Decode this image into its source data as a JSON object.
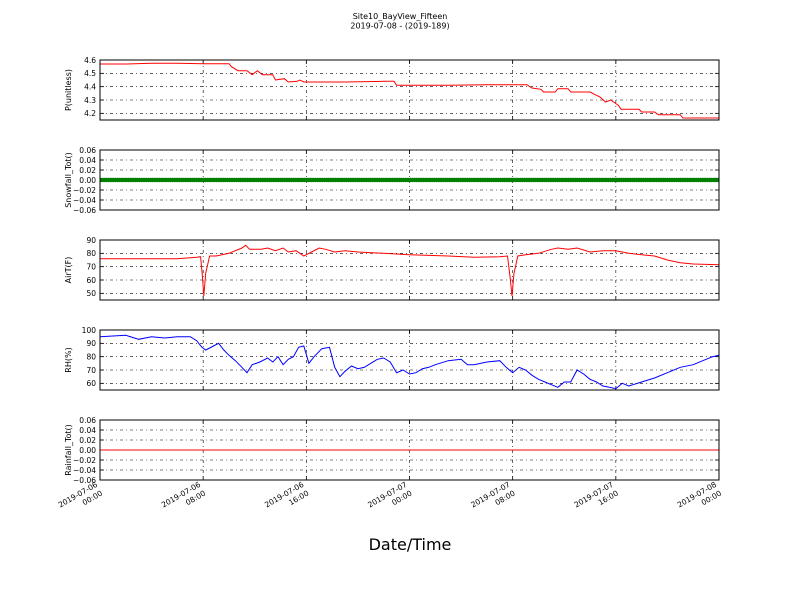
{
  "chart_data": {
    "type": "line",
    "title": "Site10_BayView_Fifteen",
    "subtitle": "2019-07-08 - (2019-189)",
    "xlabel": "Date/Time",
    "x_ticks": [
      {
        "line1": "2019-07-06",
        "line2": "00:00"
      },
      {
        "line1": "2019-07-06",
        "line2": "08:00"
      },
      {
        "line1": "2019-07-06",
        "line2": "16:00"
      },
      {
        "line1": "2019-07-07",
        "line2": "00:00"
      },
      {
        "line1": "2019-07-07",
        "line2": "08:00"
      },
      {
        "line1": "2019-07-07",
        "line2": "16:00"
      },
      {
        "line1": "2019-07-08",
        "line2": "00:00"
      }
    ],
    "x_range_hours": [
      0,
      48
    ],
    "grid": true,
    "panels": [
      {
        "ylabel": "P(unitless)",
        "ylim": [
          4.15,
          4.6
        ],
        "yticks": [
          "4.2",
          "4.3",
          "4.4",
          "4.5",
          "4.6"
        ],
        "ytick_values": [
          4.2,
          4.3,
          4.4,
          4.5,
          4.6
        ],
        "color": "#ff0000",
        "style": "line",
        "points": [
          [
            0,
            4.57
          ],
          [
            2,
            4.57
          ],
          [
            4,
            4.575
          ],
          [
            6,
            4.575
          ],
          [
            8,
            4.572
          ],
          [
            10,
            4.572
          ],
          [
            10.2,
            4.55
          ],
          [
            10.7,
            4.52
          ],
          [
            11.4,
            4.52
          ],
          [
            11.8,
            4.49
          ],
          [
            12.2,
            4.52
          ],
          [
            12.6,
            4.49
          ],
          [
            13.4,
            4.49
          ],
          [
            13.6,
            4.45
          ],
          [
            14.3,
            4.46
          ],
          [
            14.6,
            4.435
          ],
          [
            15.3,
            4.44
          ],
          [
            15.5,
            4.45
          ],
          [
            15.8,
            4.435
          ],
          [
            19,
            4.435
          ],
          [
            22,
            4.44
          ],
          [
            22.8,
            4.44
          ],
          [
            23,
            4.41
          ],
          [
            27,
            4.41
          ],
          [
            30,
            4.415
          ],
          [
            33.1,
            4.415
          ],
          [
            33.5,
            4.39
          ],
          [
            34.2,
            4.38
          ],
          [
            34.4,
            4.36
          ],
          [
            35.3,
            4.36
          ],
          [
            35.5,
            4.385
          ],
          [
            36.3,
            4.385
          ],
          [
            36.5,
            4.36
          ],
          [
            38,
            4.36
          ],
          [
            38.5,
            4.335
          ],
          [
            38.8,
            4.32
          ],
          [
            39.2,
            4.285
          ],
          [
            39.6,
            4.3
          ],
          [
            40.2,
            4.26
          ],
          [
            40.4,
            4.23
          ],
          [
            41.8,
            4.23
          ],
          [
            42,
            4.21
          ],
          [
            43,
            4.21
          ],
          [
            43.3,
            4.19
          ],
          [
            45,
            4.19
          ],
          [
            45.2,
            4.165
          ],
          [
            48,
            4.165
          ]
        ]
      },
      {
        "ylabel": "Snowfall_Tot()",
        "ylim": [
          -0.06,
          0.06
        ],
        "yticks": [
          "−0.06",
          "−0.04",
          "−0.02",
          "0.00",
          "0.02",
          "0.04",
          "0.06"
        ],
        "ytick_values": [
          -0.06,
          -0.04,
          -0.02,
          0.0,
          0.02,
          0.04,
          0.06
        ],
        "color": "#008000",
        "style": "markers",
        "points": [
          [
            0,
            0
          ],
          [
            48,
            0
          ]
        ]
      },
      {
        "ylabel": "AirT(F)",
        "ylim": [
          45,
          90
        ],
        "yticks": [
          "50",
          "60",
          "70",
          "80",
          "90"
        ],
        "ytick_values": [
          50,
          60,
          70,
          80,
          90
        ],
        "color": "#ff0000",
        "style": "line",
        "points": [
          [
            0,
            76
          ],
          [
            3,
            76
          ],
          [
            6,
            76
          ],
          [
            7.5,
            77
          ],
          [
            7.8,
            77.5
          ],
          [
            7.95,
            62
          ],
          [
            8.05,
            48
          ],
          [
            8.2,
            65
          ],
          [
            8.5,
            78
          ],
          [
            9,
            78
          ],
          [
            10,
            80
          ],
          [
            11,
            84
          ],
          [
            11.3,
            86
          ],
          [
            11.6,
            83
          ],
          [
            12.5,
            83
          ],
          [
            13,
            84
          ],
          [
            13.6,
            82
          ],
          [
            14.2,
            84
          ],
          [
            14.6,
            81
          ],
          [
            15.2,
            82
          ],
          [
            15.8,
            78
          ],
          [
            16.4,
            81
          ],
          [
            17,
            84
          ],
          [
            17.5,
            83
          ],
          [
            18.2,
            81
          ],
          [
            19,
            82
          ],
          [
            20,
            81
          ],
          [
            22,
            80
          ],
          [
            24,
            79
          ],
          [
            27,
            78
          ],
          [
            29,
            77
          ],
          [
            31,
            77.5
          ],
          [
            31.6,
            78
          ],
          [
            31.8,
            62
          ],
          [
            31.95,
            48
          ],
          [
            32.1,
            65
          ],
          [
            32.4,
            78
          ],
          [
            33,
            79
          ],
          [
            34,
            80
          ],
          [
            35,
            83
          ],
          [
            35.5,
            84
          ],
          [
            36.3,
            83
          ],
          [
            37,
            84
          ],
          [
            38,
            81
          ],
          [
            39,
            82
          ],
          [
            40,
            82
          ],
          [
            41,
            80
          ],
          [
            42,
            79
          ],
          [
            43,
            78
          ],
          [
            44,
            75
          ],
          [
            45,
            73
          ],
          [
            46,
            72
          ],
          [
            48,
            71.5
          ]
        ]
      },
      {
        "ylabel": "RH(%)",
        "ylim": [
          55,
          100
        ],
        "yticks": [
          "60",
          "70",
          "80",
          "90",
          "100"
        ],
        "ytick_values": [
          60,
          70,
          80,
          90,
          100
        ],
        "color": "#0000ff",
        "style": "line",
        "points": [
          [
            0,
            95
          ],
          [
            1,
            95.5
          ],
          [
            2,
            96
          ],
          [
            3,
            93
          ],
          [
            4,
            95
          ],
          [
            5,
            94
          ],
          [
            6,
            95
          ],
          [
            7,
            95
          ],
          [
            7.5,
            92
          ],
          [
            7.9,
            87
          ],
          [
            8.2,
            85
          ],
          [
            8.8,
            88
          ],
          [
            9.2,
            90
          ],
          [
            9.6,
            85
          ],
          [
            10,
            81
          ],
          [
            10.5,
            77
          ],
          [
            11,
            72
          ],
          [
            11.4,
            68
          ],
          [
            11.8,
            74
          ],
          [
            12.4,
            76
          ],
          [
            13,
            79
          ],
          [
            13.4,
            76
          ],
          [
            13.8,
            80
          ],
          [
            14.2,
            74
          ],
          [
            14.6,
            78
          ],
          [
            15,
            80
          ],
          [
            15.4,
            87
          ],
          [
            15.8,
            88
          ],
          [
            16.2,
            75
          ],
          [
            16.6,
            80
          ],
          [
            17.2,
            86
          ],
          [
            17.8,
            87
          ],
          [
            18.2,
            72
          ],
          [
            18.6,
            65
          ],
          [
            19,
            69
          ],
          [
            19.5,
            73
          ],
          [
            20,
            71
          ],
          [
            20.5,
            72
          ],
          [
            21,
            75
          ],
          [
            21.5,
            78
          ],
          [
            22,
            79
          ],
          [
            22.5,
            76
          ],
          [
            23,
            68
          ],
          [
            23.5,
            70
          ],
          [
            24,
            67
          ],
          [
            24.5,
            68
          ],
          [
            25,
            71
          ],
          [
            25.5,
            72
          ],
          [
            26,
            74
          ],
          [
            27,
            77
          ],
          [
            28,
            78
          ],
          [
            28.5,
            74
          ],
          [
            29,
            74
          ],
          [
            30,
            76
          ],
          [
            31,
            77
          ],
          [
            31.5,
            72
          ],
          [
            32,
            68
          ],
          [
            32.5,
            72
          ],
          [
            33,
            70
          ],
          [
            33.5,
            66
          ],
          [
            34,
            63
          ],
          [
            34.5,
            61
          ],
          [
            35,
            59
          ],
          [
            35.5,
            57
          ],
          [
            36,
            61
          ],
          [
            36.5,
            61
          ],
          [
            37,
            70
          ],
          [
            37.5,
            67
          ],
          [
            38,
            63
          ],
          [
            38.5,
            61
          ],
          [
            39,
            58
          ],
          [
            39.5,
            57
          ],
          [
            40,
            56
          ],
          [
            40.5,
            60
          ],
          [
            41,
            58
          ],
          [
            42,
            61
          ],
          [
            43,
            64
          ],
          [
            44,
            68
          ],
          [
            45,
            72
          ],
          [
            46,
            74
          ],
          [
            47,
            78
          ],
          [
            47.5,
            80
          ],
          [
            48,
            81
          ]
        ]
      },
      {
        "ylabel": "Rainfall_Tot()",
        "ylim": [
          -0.06,
          0.06
        ],
        "yticks": [
          "−0.06",
          "−0.04",
          "−0.02",
          "0.00",
          "0.02",
          "0.04",
          "0.06"
        ],
        "ytick_values": [
          -0.06,
          -0.04,
          -0.02,
          0.0,
          0.02,
          0.04,
          0.06
        ],
        "color": "#ff0000",
        "style": "line",
        "points": [
          [
            0,
            0
          ],
          [
            48,
            0
          ]
        ]
      }
    ]
  }
}
